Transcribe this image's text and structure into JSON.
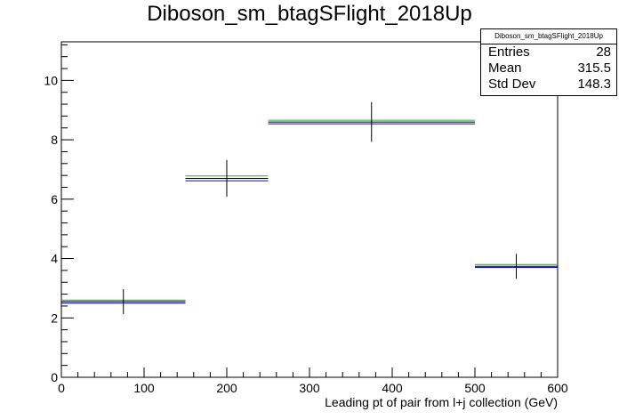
{
  "chart_data": {
    "type": "histogram",
    "title": "Diboson_sm_btagSFlight_2018Up",
    "xlabel": "Leading pt of pair from l+j collection (GeV)",
    "ylabel": "",
    "xlim": [
      0,
      600
    ],
    "ylim": [
      0,
      11.3
    ],
    "x_ticks": [
      0,
      100,
      200,
      300,
      400,
      500,
      600
    ],
    "y_ticks": [
      0,
      2,
      4,
      6,
      8,
      10
    ],
    "bins": [
      {
        "x_low": 0,
        "x_high": 150,
        "center": 75,
        "value": 2.55,
        "error": 0.42,
        "up_variation": 2.6,
        "down_variation": 2.5
      },
      {
        "x_low": 150,
        "x_high": 250,
        "center": 200,
        "value": 6.7,
        "error": 0.62,
        "up_variation": 6.78,
        "down_variation": 6.62
      },
      {
        "x_low": 250,
        "x_high": 500,
        "center": 375,
        "value": 8.6,
        "error": 0.67,
        "up_variation": 8.66,
        "down_variation": 8.54
      },
      {
        "x_low": 500,
        "x_high": 600,
        "center": 550,
        "value": 3.74,
        "error": 0.42,
        "up_variation": 3.8,
        "down_variation": 3.7
      }
    ],
    "series_colors": {
      "nominal": "#000000",
      "up": "#00cc00",
      "down": "#0000ff"
    },
    "grid": false,
    "stats": {
      "name": "Diboson_sm_btagSFlight_2018Up",
      "rows": [
        {
          "label": "Entries",
          "value": "28"
        },
        {
          "label": "Mean",
          "value": "315.5"
        },
        {
          "label": "Std Dev",
          "value": "148.3"
        }
      ]
    }
  }
}
